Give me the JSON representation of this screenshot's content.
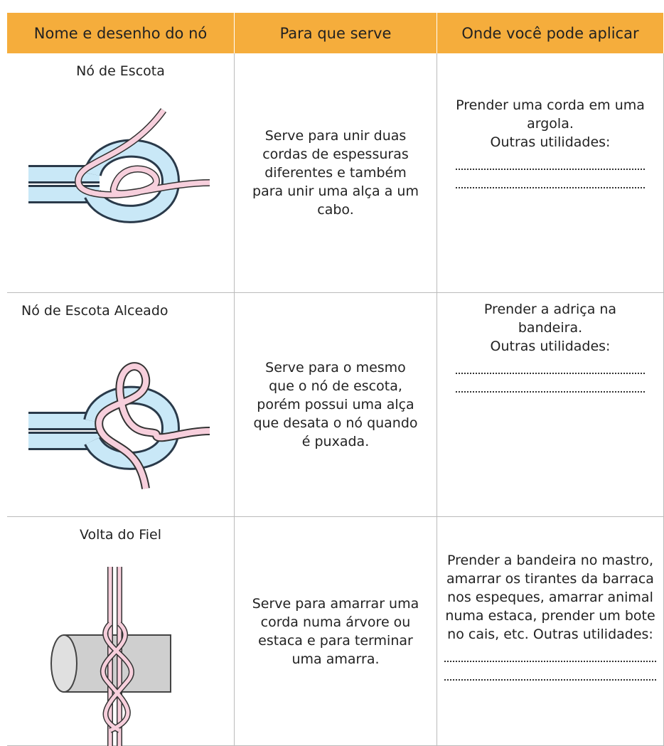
{
  "table": {
    "headers": [
      "Nome e desenho do nó",
      "Para que serve",
      "Onde você pode aplicar"
    ],
    "rows": [
      {
        "name": "Nó de Escota",
        "use": "Serve para unir duas cordas de espessuras diferentes e também para unir uma alça a um cabo.",
        "application": "Prender uma corda em uma argola.",
        "other": "Outras utilidades:"
      },
      {
        "name": "Nó de Escota Alceado",
        "use": "Serve para o mesmo que o nó de escota, porém possui uma alça que desata o nó quando é puxada.",
        "application": "Prender a adriça na bandeira.",
        "other": "Outras utilidades:"
      },
      {
        "name": "Volta do Fiel",
        "use": "Serve para amarrar uma corda numa árvore ou estaca e para terminar uma amarra.",
        "application": "Prender a bandeira no mastro, amarrar os tirantes da barraca nos espeques, amarrar animal numa estaca, prender um bote no cais, etc.",
        "other": "Outras utilidades:"
      }
    ]
  }
}
